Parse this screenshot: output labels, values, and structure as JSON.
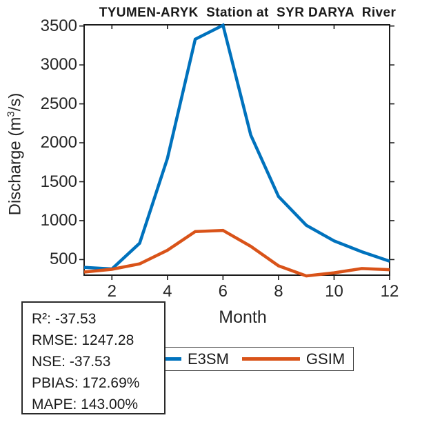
{
  "chart_data": {
    "type": "line",
    "title": "TYUMEN-ARYK  Station at  SYR DARYA  River",
    "xlabel": "Month",
    "ylabel_parts": {
      "pre": "Discharge (m",
      "sup": "3",
      "post": "/s)"
    },
    "x": [
      1,
      2,
      3,
      4,
      5,
      6,
      7,
      8,
      9,
      10,
      11,
      12
    ],
    "series": [
      {
        "name": "E3SM",
        "color": "#0072BD",
        "values": [
          400,
          380,
          710,
          1800,
          3330,
          3510,
          2100,
          1310,
          940,
          740,
          600,
          480
        ]
      },
      {
        "name": "GSIM",
        "color": "#D95319",
        "values": [
          340,
          375,
          445,
          620,
          860,
          875,
          670,
          420,
          290,
          330,
          385,
          370
        ]
      }
    ],
    "xticks": [
      2,
      4,
      6,
      8,
      10,
      12
    ],
    "yticks": [
      500,
      1000,
      1500,
      2000,
      2500,
      3000,
      3500
    ],
    "xlim": [
      1,
      12
    ],
    "ylim": [
      300,
      3515
    ],
    "grid": false,
    "legend_position": "below-axis-horizontal",
    "axis_color": "#1a1a1a"
  },
  "stats": {
    "lines": {
      "0": "R²: -37.53",
      "1": "RMSE: 1247.28",
      "2": "NSE: -37.53",
      "3": "PBIAS: 172.69%",
      "4": "MAPE: 143.00%"
    }
  },
  "legend": {
    "items": {
      "0": {
        "label": "E3SM",
        "color": "#0072BD"
      },
      "1": {
        "label": "GSIM",
        "color": "#D95319"
      }
    }
  }
}
